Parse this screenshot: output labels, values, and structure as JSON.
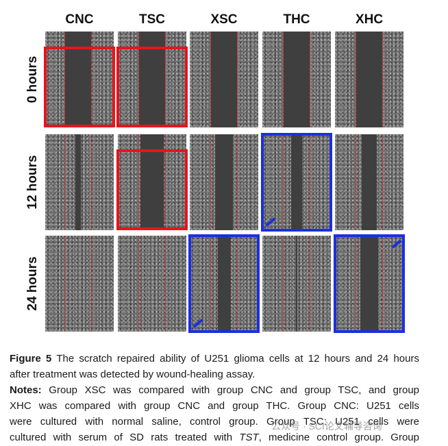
{
  "figure": {
    "columns": [
      "CNC",
      "TSC",
      "XSC",
      "THC",
      "XHC"
    ],
    "rows": [
      "0 hours",
      "12 hours",
      "24 hours"
    ],
    "panels": [
      [
        {
          "closure": 0.0,
          "box": "red"
        },
        {
          "closure": 0.0,
          "box": "red"
        },
        {
          "closure": 0.0,
          "box": "none"
        },
        {
          "closure": 0.0,
          "box": "none"
        },
        {
          "closure": 0.0,
          "box": "none"
        }
      ],
      [
        {
          "closure": 0.8,
          "box": "none"
        },
        {
          "closure": 0.1,
          "box": "red"
        },
        {
          "closure": 0.3,
          "box": "none"
        },
        {
          "closure": 0.6,
          "box": "blue"
        },
        {
          "closure": 0.4,
          "box": "none"
        }
      ],
      [
        {
          "closure": 1.0,
          "box": "none"
        },
        {
          "closure": 1.0,
          "box": "none"
        },
        {
          "closure": 0.5,
          "box": "blue"
        },
        {
          "closure": 0.95,
          "box": "none"
        },
        {
          "closure": 0.3,
          "box": "blue"
        }
      ]
    ],
    "colors": {
      "highlight_red": "#e8141b",
      "highlight_blue": "#1a2fe0",
      "scratch_edge": "#e02020"
    }
  },
  "caption": {
    "fig_label": "Figure 5",
    "title_line1": "The scratch repaired ability of U251 glioma cells at 12 hours and 24 hours",
    "title_line2": "after treatment was detected by wound-healing assay.",
    "notes_label": "Notes:",
    "notes_line1": "Group XSC was compared with group CNC and group TSC, and group",
    "notes_line2": "XHC was compared with group CNC and group THC. Group CNC: U251 cells",
    "notes_line3": "were cultured with normal saline, control group. Group TSC: U251 cells were",
    "notes_line4_a": "cultured with serum of SD rats treated with ",
    "notes_line4_em": "TST",
    "notes_line4_b": ", medicine control group. Group"
  },
  "watermark": "公众号 · SCI论文辅导咨询"
}
